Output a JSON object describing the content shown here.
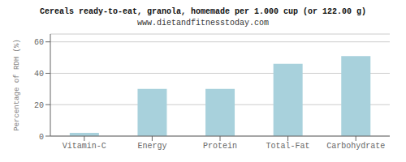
{
  "chart_data": {
    "type": "bar",
    "title": "Cereals ready-to-eat, granola, homemade per 1.000 cup (or 122.00 g)",
    "subtitle": "www.dietandfitnesstoday.com",
    "categories": [
      "Vitamin-C",
      "Energy",
      "Protein",
      "Total-Fat",
      "Carbohydrate"
    ],
    "values": [
      2,
      30,
      30,
      46,
      51
    ],
    "color": "#a8d1dc",
    "ylabel": "Percentage of RDH (%)",
    "ylim": [
      0,
      65
    ],
    "yticks": [
      0,
      20,
      40,
      60
    ],
    "grid": true
  }
}
